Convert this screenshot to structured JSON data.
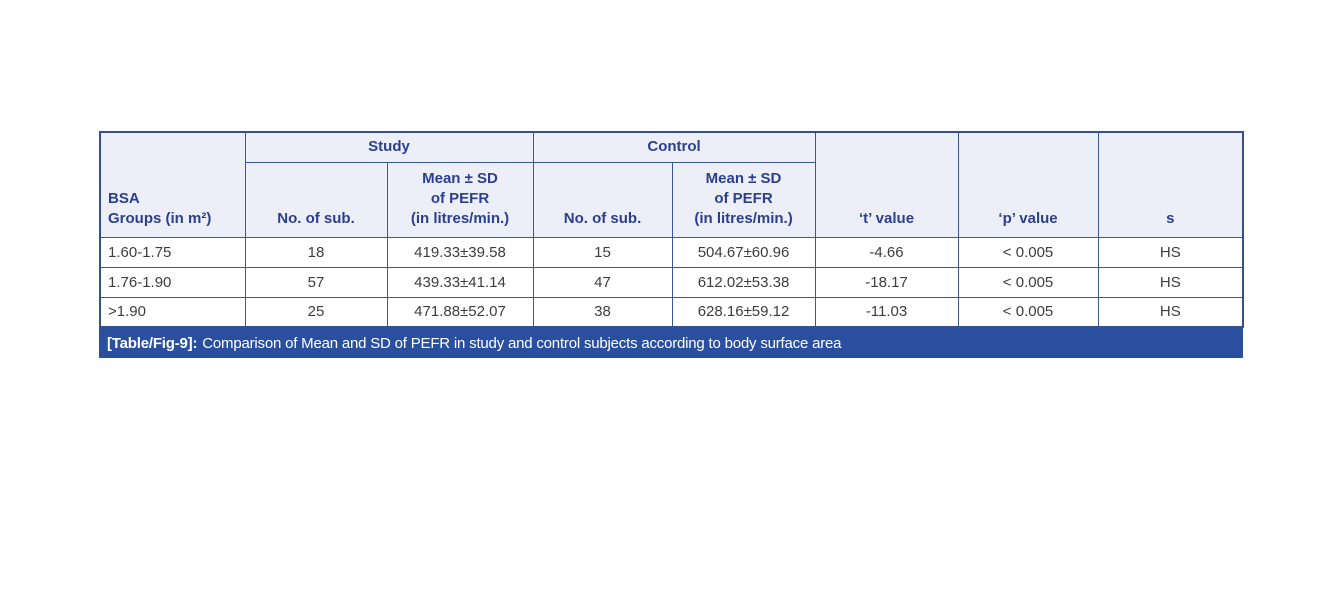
{
  "table": {
    "group_headers": {
      "study": "Study",
      "control": "Control"
    },
    "col_headers": {
      "bsa": "BSA\nGroups (in m²)",
      "no_sub_study": "No. of sub.",
      "mean_sd_study": "Mean ± SD\nof PEFR\n(in litres/min.)",
      "no_sub_control": "No. of sub.",
      "mean_sd_control": "Mean ± SD\nof PEFR\n(in litres/min.)",
      "t_value": "‘t’ value",
      "p_value": "‘p’ value",
      "s": "s"
    },
    "rows": [
      {
        "bsa": "1.60-1.75",
        "n_study": "18",
        "mean_study": "419.33±39.58",
        "n_control": "15",
        "mean_control": "504.67±60.96",
        "t": "-4.66",
        "p": "< 0.005",
        "s": "HS"
      },
      {
        "bsa": "1.76-1.90",
        "n_study": "57",
        "mean_study": "439.33±41.14",
        "n_control": "47",
        "mean_control": "612.02±53.38",
        "t": "-18.17",
        "p": "< 0.005",
        "s": "HS"
      },
      {
        "bsa": ">1.90",
        "n_study": "25",
        "mean_study": "471.88±52.07",
        "n_control": "38",
        "mean_control": "628.16±59.12",
        "t": "-11.03",
        "p": "< 0.005",
        "s": "HS"
      }
    ],
    "caption": {
      "label": "[Table/Fig-9]:",
      "text": "Comparison of Mean and SD of PEFR in study and control subjects according to body surface area"
    }
  },
  "colors": {
    "header_bg": "#eceef8",
    "header_text": "#2b3f90",
    "border": "#3a5899",
    "caption_bg": "#2a4f9e",
    "caption_text": "#ffffff",
    "data_text": "#3d3d3d"
  }
}
